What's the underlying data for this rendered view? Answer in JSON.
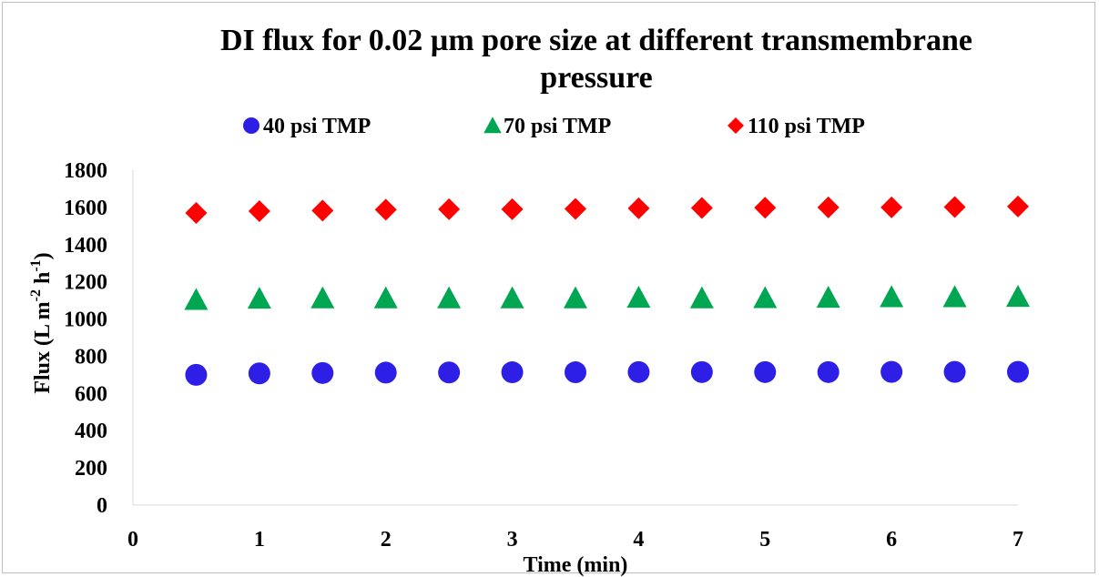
{
  "chart_data": {
    "type": "scatter",
    "title": "DI flux for 0.02 µm pore size at different transmembrane pressure",
    "title_lines": [
      "DI flux for 0.02 µm pore size at different transmembrane",
      "pressure"
    ],
    "xlabel": "Time (min)",
    "ylabel": "Flux (L m⁻² h⁻¹)",
    "ylabel_parts": {
      "base": "Flux (L m",
      "sup1": "-2",
      "mid": " h",
      "sup2": "-1",
      "end": ")"
    },
    "xlim": [
      0,
      7
    ],
    "ylim": [
      0,
      1800
    ],
    "xticks": [
      "0",
      "1",
      "2",
      "3",
      "4",
      "5",
      "6",
      "7"
    ],
    "yticks": [
      "0",
      "200",
      "400",
      "600",
      "800",
      "1000",
      "1200",
      "1400",
      "1600",
      "1800"
    ],
    "grid": false,
    "legend_position": "top",
    "x": [
      0.5,
      1,
      1.5,
      2,
      2.5,
      3,
      3.5,
      4,
      4.5,
      5,
      5.5,
      6,
      6.5,
      7
    ],
    "series": [
      {
        "name": "40 psi TMP",
        "marker": "circle",
        "color": "#2e1fe6",
        "values": [
          700,
          708,
          710,
          712,
          713,
          714,
          714,
          715,
          715,
          715,
          715,
          716,
          716,
          716
        ]
      },
      {
        "name": "70 psi TMP",
        "marker": "triangle",
        "color": "#00a651",
        "values": [
          1103,
          1110,
          1112,
          1112,
          1112,
          1112,
          1112,
          1115,
          1112,
          1113,
          1115,
          1118,
          1118,
          1120
        ]
      },
      {
        "name": "110 psi TMP",
        "marker": "diamond",
        "color": "#ff0000",
        "values": [
          1570,
          1580,
          1583,
          1588,
          1590,
          1590,
          1592,
          1595,
          1597,
          1598,
          1600,
          1600,
          1602,
          1605
        ]
      }
    ]
  }
}
